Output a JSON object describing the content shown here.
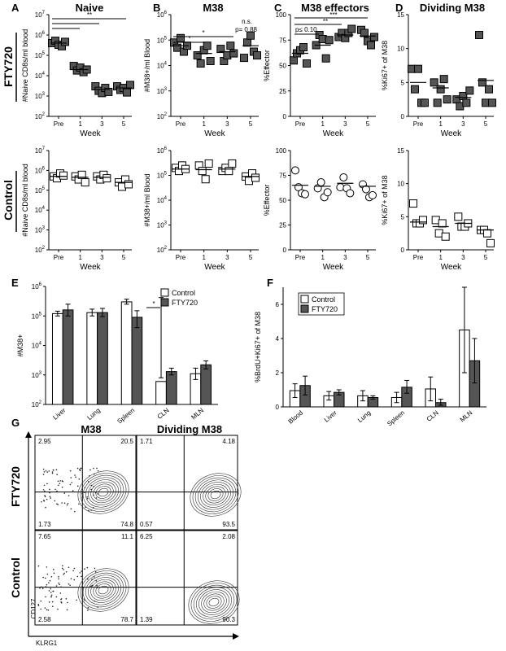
{
  "panels": {
    "A": {
      "letter": "A",
      "title": "Naive",
      "top_ylabel": "#Naive CD8s/ml blood",
      "bottom_ylabel": "#Naive CD8s/ml blood",
      "xlabel": "Week",
      "stats": [
        "*",
        "*",
        "**"
      ]
    },
    "B": {
      "letter": "B",
      "title": "M38",
      "top_ylabel": "#M38+/ml Blood",
      "bottom_ylabel": "#M38+/ml Blood",
      "xlabel": "Week",
      "stats": [
        "*",
        "*"
      ],
      "ns_label": "n.s.",
      "p_label": "p= 0.88"
    },
    "C": {
      "letter": "C",
      "title": "M38 effectors",
      "top_ylabel": "%Effector",
      "bottom_ylabel": "%Effector",
      "xlabel": "Week",
      "stats": [
        "***",
        "**",
        "p≤ 0.10"
      ]
    },
    "D": {
      "letter": "D",
      "title": "Dividing M38",
      "top_ylabel": "%Ki67+ of M38",
      "bottom_ylabel": "%Ki67+ of M38",
      "xlabel": "Week"
    },
    "E": {
      "letter": "E",
      "ylabel": "#M38+",
      "stat": "*"
    },
    "F": {
      "letter": "F",
      "ylabel": "%BrdU+Ki67+ of M38"
    },
    "G": {
      "letter": "G",
      "col1": "M38",
      "col2": "Dividing M38",
      "yaxis": "CD127",
      "xaxis": "KLRG1"
    }
  },
  "row_labels": {
    "fty": "FTY720",
    "control": "Control"
  },
  "chart_data": [
    {
      "id": "A-FTY720",
      "type": "scatter",
      "title": "Naive",
      "ylabel": "#Naive CD8s/ml blood",
      "xlabel": "Week",
      "scale": "log",
      "ylim": [
        100,
        10000000
      ],
      "y_ticks": [
        "10^2",
        "10^3",
        "10^4",
        "10^5",
        "10^6",
        "10^7"
      ],
      "categories": [
        "Pre",
        "1",
        "3",
        "5"
      ],
      "points": [
        [
          400000,
          520000,
          330000,
          280000,
          460000
        ],
        [
          30000,
          18000,
          25000,
          15000,
          20000
        ],
        [
          3000,
          1800,
          1400,
          2500,
          1600
        ],
        [
          3000,
          2000,
          2500,
          1500,
          3500
        ]
      ],
      "means": [
        400000,
        20000,
        2100,
        2500
      ],
      "marker": "filled-square"
    },
    {
      "id": "A-Control",
      "type": "scatter",
      "ylabel": "#Naive CD8s/ml blood",
      "xlabel": "Week",
      "scale": "log",
      "ylim": [
        100,
        10000000
      ],
      "y_ticks": [
        "10^2",
        "10^3",
        "10^4",
        "10^5",
        "10^6",
        "10^7"
      ],
      "categories": [
        "Pre",
        "1",
        "3",
        "5"
      ],
      "points": [
        [
          500000,
          400000,
          700000,
          550000
        ],
        [
          500000,
          350000,
          600000,
          250000
        ],
        [
          500000,
          350000,
          600000,
          400000
        ],
        [
          250000,
          150000,
          350000,
          200000
        ]
      ],
      "means": [
        500000,
        450000,
        450000,
        250000
      ],
      "marker": "open-square"
    },
    {
      "id": "B-FTY720",
      "type": "scatter",
      "title": "M38",
      "ylabel": "#M38+/ml Blood",
      "xlabel": "Week",
      "scale": "log",
      "ylim": [
        100,
        1000000
      ],
      "y_ticks": [
        "10^2",
        "10^3",
        "10^4",
        "10^5",
        "10^6"
      ],
      "categories": [
        "Pre",
        "1",
        "3",
        "5"
      ],
      "points": [
        [
          80000,
          50000,
          120000,
          35000,
          60000
        ],
        [
          25000,
          12000,
          40000,
          60000,
          15000
        ],
        [
          45000,
          15000,
          25000,
          60000,
          30000
        ],
        [
          20000,
          80000,
          150000,
          35000,
          25000
        ]
      ],
      "means": [
        60000,
        30000,
        35000,
        60000
      ],
      "marker": "filled-square"
    },
    {
      "id": "B-Control",
      "type": "scatter",
      "ylabel": "#M38+/ml Blood",
      "xlabel": "Week",
      "scale": "log",
      "ylim": [
        100,
        1000000
      ],
      "y_ticks": [
        "10^2",
        "10^3",
        "10^4",
        "10^5",
        "10^6"
      ],
      "categories": [
        "Pre",
        "1",
        "3",
        "5"
      ],
      "points": [
        [
          200000,
          150000,
          250000,
          180000
        ],
        [
          250000,
          150000,
          70000,
          300000
        ],
        [
          150000,
          200000,
          150000,
          300000
        ],
        [
          90000,
          60000,
          120000,
          80000
        ]
      ],
      "means": [
        180000,
        170000,
        180000,
        90000
      ],
      "marker": "open-square"
    },
    {
      "id": "C-FTY720",
      "type": "scatter",
      "title": "M38 effectors",
      "ylabel": "%Effector",
      "xlabel": "Week",
      "scale": "linear",
      "ylim": [
        0,
        100
      ],
      "y_ticks": [
        "0",
        "25",
        "50",
        "75",
        "100"
      ],
      "categories": [
        "Pre",
        "1",
        "3",
        "5"
      ],
      "points": [
        [
          55,
          62,
          65,
          68,
          52
        ],
        [
          70,
          80,
          76,
          57,
          75
        ],
        [
          78,
          82,
          77,
          82,
          86
        ],
        [
          85,
          82,
          74,
          70,
          78
        ]
      ],
      "means": [
        62,
        70,
        80,
        79
      ],
      "marker": "filled-square"
    },
    {
      "id": "C-Control",
      "type": "scatter",
      "ylabel": "%Effector",
      "xlabel": "Week",
      "scale": "linear",
      "ylim": [
        0,
        100
      ],
      "y_ticks": [
        "0",
        "25",
        "50",
        "75",
        "100"
      ],
      "categories": [
        "Pre",
        "1",
        "3",
        "5"
      ],
      "points": [
        [
          80,
          63,
          57,
          56
        ],
        [
          62,
          68,
          53,
          58
        ],
        [
          63,
          73,
          62,
          57
        ],
        [
          66,
          61,
          53,
          55
        ]
      ],
      "means": [
        65,
        64,
        67,
        64
      ],
      "marker": "open-circle"
    },
    {
      "id": "D-FTY720",
      "type": "scatter",
      "title": "Dividing M38",
      "ylabel": "%Ki67+ of M38",
      "xlabel": "Week",
      "scale": "linear",
      "ylim": [
        0,
        15
      ],
      "y_ticks": [
        "0",
        "5",
        "10",
        "15"
      ],
      "categories": [
        "Pre",
        "1",
        "3",
        "5"
      ],
      "points": [
        [
          7,
          4,
          7,
          2,
          2
        ],
        [
          5,
          2,
          4,
          5.5,
          2.5
        ],
        [
          2.5,
          1.5,
          3,
          2,
          3.8
        ],
        [
          12,
          5,
          2,
          4,
          2
        ]
      ],
      "means": [
        5,
        4.2,
        2.8,
        5.3
      ],
      "marker": "filled-square"
    },
    {
      "id": "D-Control",
      "type": "scatter",
      "ylabel": "%Ki67+ of M38",
      "xlabel": "Week",
      "scale": "linear",
      "ylim": [
        0,
        15
      ],
      "y_ticks": [
        "0",
        "5",
        "10",
        "15"
      ],
      "categories": [
        "Pre",
        "1",
        "3",
        "5"
      ],
      "points": [
        [
          7,
          4,
          4,
          4.5
        ],
        [
          4.5,
          2.5,
          4,
          2
        ],
        [
          5,
          3.5,
          3.5,
          4
        ],
        [
          3,
          3,
          2.5,
          1
        ]
      ],
      "means": [
        4.2,
        3.5,
        4,
        3
      ],
      "marker": "open-square"
    },
    {
      "id": "E",
      "type": "bar",
      "ylabel": "#M38+",
      "scale": "log",
      "ylim": [
        100,
        1000000
      ],
      "y_ticks": [
        "10^2",
        "10^3",
        "10^4",
        "10^5",
        "10^6"
      ],
      "categories": [
        "Liver",
        "Lung",
        "Spleen",
        "CLN",
        "MLN"
      ],
      "series": [
        {
          "name": "Control",
          "values": [
            120000,
            130000,
            300000,
            600,
            1100
          ],
          "err": [
            [
              100000,
              145000
            ],
            [
              100000,
              170000
            ],
            [
              250000,
              370000
            ],
            [
              420000,
              800
            ],
            [
              700,
              1700
            ]
          ]
        },
        {
          "name": "FTY720",
          "values": [
            160000,
            130000,
            90000,
            1300,
            2200
          ],
          "err": [
            [
              100000,
              250000
            ],
            [
              95000,
              180000
            ],
            [
              40000,
              150000
            ],
            [
              1000,
              1700
            ],
            [
              1600,
              3000
            ]
          ]
        }
      ],
      "legend": "top-right"
    },
    {
      "id": "F",
      "type": "bar",
      "ylabel": "%BrdU+Ki67+ of M38",
      "scale": "linear",
      "ylim": [
        0,
        7
      ],
      "y_ticks": [
        "0",
        "2",
        "4",
        "6"
      ],
      "categories": [
        "Blood",
        "Liver",
        "Lung",
        "Spleen",
        "CLN",
        "MLN"
      ],
      "series": [
        {
          "name": "Control",
          "values": [
            0.95,
            0.65,
            0.65,
            0.55,
            1.05,
            4.5
          ],
          "err": [
            [
              0.55,
              1.35
            ],
            [
              0.4,
              0.9
            ],
            [
              0.35,
              0.95
            ],
            [
              0.25,
              0.85
            ],
            [
              0.35,
              1.75
            ],
            [
              2,
              7
            ]
          ]
        },
        {
          "name": "FTY720",
          "values": [
            1.25,
            0.85,
            0.55,
            1.15,
            0.25,
            2.7
          ],
          "err": [
            [
              0.7,
              1.8
            ],
            [
              0.7,
              1.0
            ],
            [
              0.45,
              0.65
            ],
            [
              0.8,
              1.55
            ],
            [
              0.1,
              0.45
            ],
            [
              1.4,
              4
            ]
          ]
        }
      ],
      "legend": "top-left"
    }
  ],
  "flow": {
    "quadrants": [
      {
        "tl": "2.95",
        "tr": "20.5",
        "bl": "1.73",
        "br": "74.8"
      },
      {
        "tl": "1.71",
        "tr": "4.18",
        "bl": "0.57",
        "br": "93.5"
      },
      {
        "tl": "7.65",
        "tr": "11.1",
        "bl": "2.58",
        "br": "78.7"
      },
      {
        "tl": "6.25",
        "tr": "2.08",
        "bl": "1.39",
        "br": "90.3"
      }
    ]
  }
}
